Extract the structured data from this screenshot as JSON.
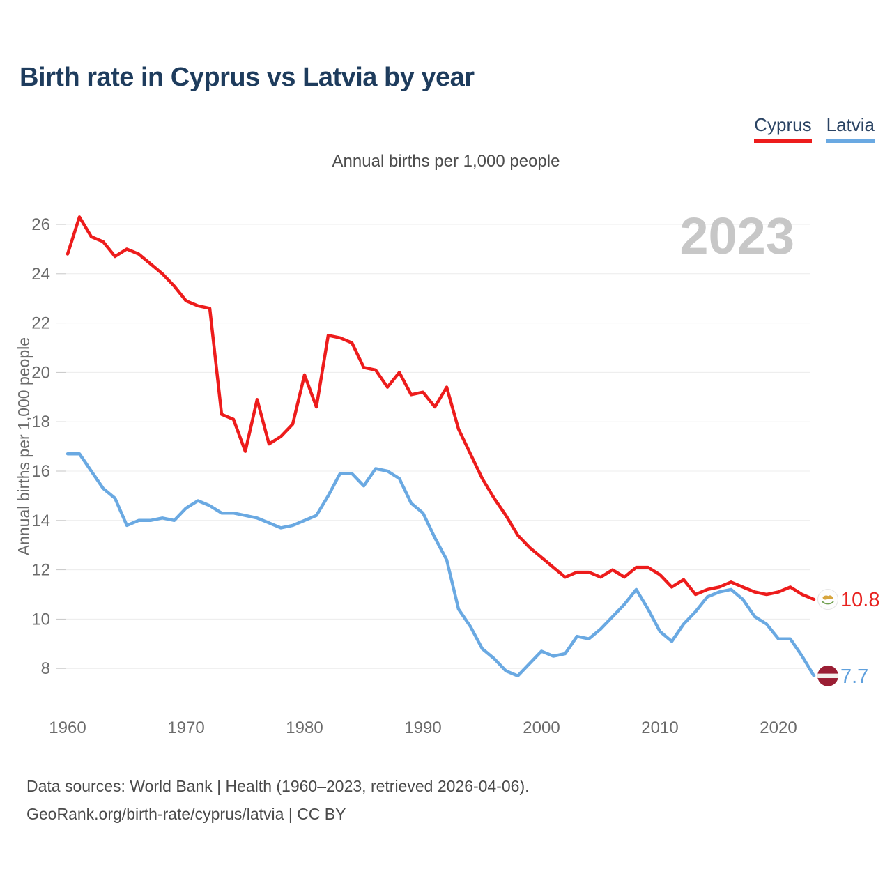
{
  "title": "Birth rate in Cyprus vs Latvia by year",
  "subtitle": "Annual births per 1,000 people",
  "watermark": "2023",
  "legend": [
    {
      "label": "Cyprus",
      "color": "#ed1c1c"
    },
    {
      "label": "Latvia",
      "color": "#6aa9e2"
    }
  ],
  "end_labels": [
    {
      "series": "Cyprus",
      "value": "10.8",
      "color": "#e8221f",
      "flag": "cyprus-flag"
    },
    {
      "series": "Latvia",
      "value": "7.7",
      "color": "#5fa0dd",
      "flag": "latvia-flag"
    }
  ],
  "footer_line1": "Data sources: World Bank | Health (1960–2023, retrieved 2026-04-06).",
  "footer_line2": "GeoRank.org/birth-rate/cyprus/latvia | CC BY",
  "chart_data": {
    "type": "line",
    "title": "Birth rate in Cyprus vs Latvia by year",
    "ylabel": "Annual births per 1,000 people",
    "xlabel": "",
    "legend_position": "top-right",
    "grid": true,
    "ylim": [
      7,
      27
    ],
    "y_ticks": [
      8,
      10,
      12,
      14,
      16,
      18,
      20,
      22,
      24,
      26
    ],
    "x_ticks": [
      1960,
      1970,
      1980,
      1990,
      2000,
      2010,
      2020
    ],
    "x": [
      1960,
      1961,
      1962,
      1963,
      1964,
      1965,
      1966,
      1967,
      1968,
      1969,
      1970,
      1971,
      1972,
      1973,
      1974,
      1975,
      1976,
      1977,
      1978,
      1979,
      1980,
      1981,
      1982,
      1983,
      1984,
      1985,
      1986,
      1987,
      1988,
      1989,
      1990,
      1991,
      1992,
      1993,
      1994,
      1995,
      1996,
      1997,
      1998,
      1999,
      2000,
      2001,
      2002,
      2003,
      2004,
      2005,
      2006,
      2007,
      2008,
      2009,
      2010,
      2011,
      2012,
      2013,
      2014,
      2015,
      2016,
      2017,
      2018,
      2019,
      2020,
      2021,
      2022,
      2023
    ],
    "series": [
      {
        "name": "Cyprus",
        "color": "#ed1c1c",
        "values": [
          24.8,
          26.3,
          25.5,
          25.3,
          24.7,
          25.0,
          24.8,
          24.4,
          24.0,
          23.5,
          22.9,
          22.7,
          22.6,
          18.3,
          18.1,
          16.8,
          18.9,
          17.1,
          17.4,
          17.9,
          19.9,
          18.6,
          21.5,
          21.4,
          21.2,
          20.2,
          20.1,
          19.4,
          20.0,
          19.1,
          19.2,
          18.6,
          19.4,
          17.7,
          16.7,
          15.7,
          14.9,
          14.2,
          13.4,
          12.9,
          12.5,
          12.1,
          11.7,
          11.9,
          11.9,
          11.7,
          12.0,
          11.7,
          12.1,
          12.1,
          11.8,
          11.3,
          11.6,
          11.0,
          11.2,
          11.3,
          11.5,
          11.3,
          11.1,
          11.0,
          11.1,
          11.3,
          11.0,
          10.8
        ]
      },
      {
        "name": "Latvia",
        "color": "#6aa9e2",
        "values": [
          16.7,
          16.7,
          16.0,
          15.3,
          14.9,
          13.8,
          14.0,
          14.0,
          14.1,
          14.0,
          14.5,
          14.8,
          14.6,
          14.3,
          14.3,
          14.2,
          14.1,
          13.9,
          13.7,
          13.8,
          14.0,
          14.2,
          15.0,
          15.9,
          15.9,
          15.4,
          16.1,
          16.0,
          15.7,
          14.7,
          14.3,
          13.3,
          12.4,
          10.4,
          9.7,
          8.8,
          8.4,
          7.9,
          7.7,
          8.2,
          8.7,
          8.5,
          8.6,
          9.3,
          9.2,
          9.6,
          10.1,
          10.6,
          11.2,
          10.4,
          9.5,
          9.1,
          9.8,
          10.3,
          10.9,
          11.1,
          11.2,
          10.8,
          10.1,
          9.8,
          9.2,
          9.2,
          8.5,
          7.7
        ]
      }
    ]
  }
}
